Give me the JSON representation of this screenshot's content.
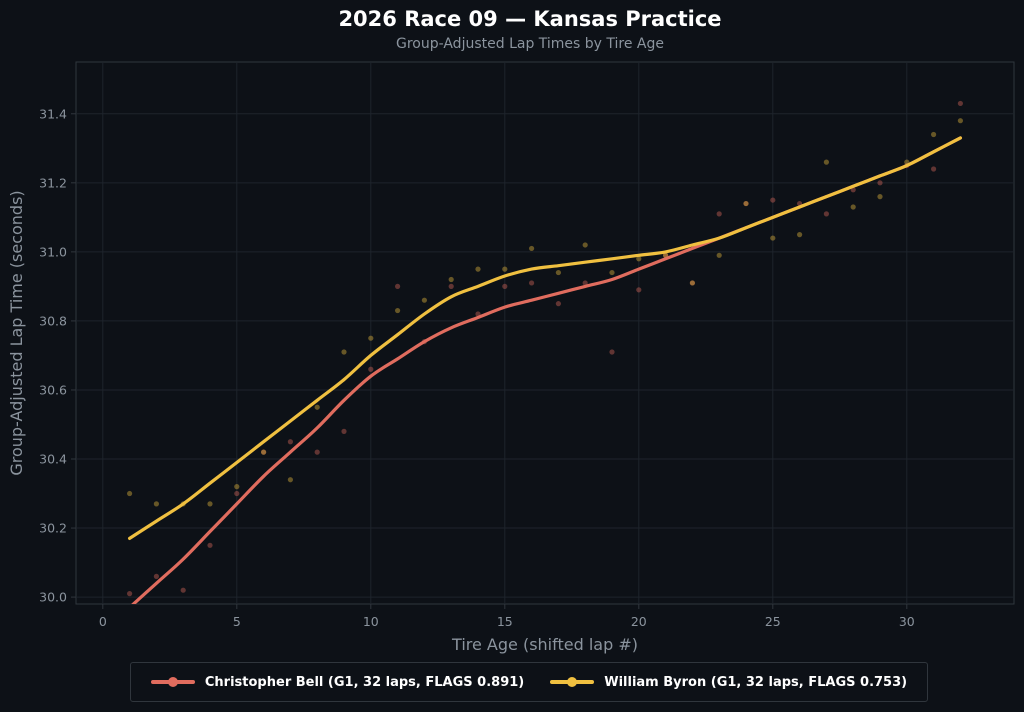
{
  "chart_data": {
    "type": "scatter",
    "title": "2026 Race 09 — Kansas Practice",
    "subtitle": "Group-Adjusted Lap Times by Tire Age",
    "xlabel": "Tire Age (shifted lap #)",
    "ylabel": "Group-Adjusted Lap Time (seconds)",
    "xlim": [
      -1,
      34
    ],
    "ylim": [
      29.98,
      31.55
    ],
    "xticks": [
      0,
      5,
      10,
      15,
      20,
      25,
      30
    ],
    "yticks": [
      30.0,
      30.2,
      30.4,
      30.6,
      30.8,
      31.0,
      31.2,
      31.4
    ],
    "grid": true,
    "legend_position": "bottom-center",
    "series": [
      {
        "name": "Christopher Bell (G1, 32 laps, FLAGS 0.891)",
        "color": "#e06c5e",
        "points": {
          "x": [
            1,
            2,
            3,
            4,
            5,
            6,
            7,
            8,
            9,
            10,
            11,
            12,
            13,
            14,
            15,
            16,
            17,
            18,
            19,
            20,
            21,
            22,
            23,
            24,
            25,
            26,
            27,
            28,
            29,
            30,
            31,
            32
          ],
          "y": [
            30.01,
            30.06,
            30.02,
            30.15,
            30.3,
            30.42,
            30.45,
            30.42,
            30.48,
            30.66,
            30.9,
            30.74,
            30.9,
            30.82,
            30.9,
            30.91,
            30.85,
            30.91,
            30.71,
            30.89,
            30.99,
            30.91,
            31.11,
            31.14,
            31.15,
            31.14,
            31.11,
            31.18,
            31.2,
            31.25,
            31.24,
            31.43
          ]
        },
        "trend": {
          "x": [
            1,
            2,
            3,
            4,
            5,
            6,
            7,
            8,
            9,
            10,
            11,
            12,
            13,
            14,
            15,
            16,
            17,
            18,
            19,
            20,
            21,
            22,
            23,
            24,
            25,
            26,
            27,
            28,
            29,
            30,
            31,
            32
          ],
          "y": [
            29.97,
            30.04,
            30.11,
            30.19,
            30.27,
            30.35,
            30.42,
            30.49,
            30.57,
            30.64,
            30.69,
            30.74,
            30.78,
            30.81,
            30.84,
            30.86,
            30.88,
            30.9,
            30.92,
            30.95,
            30.98,
            31.01,
            31.04,
            31.07,
            31.1,
            31.13,
            31.16,
            31.19,
            31.22,
            31.25,
            31.29,
            31.33
          ]
        }
      },
      {
        "name": "William Byron (G1, 32 laps, FLAGS 0.753)",
        "color": "#f0c040",
        "points": {
          "x": [
            1,
            2,
            3,
            4,
            5,
            6,
            7,
            8,
            9,
            10,
            11,
            12,
            13,
            14,
            15,
            16,
            17,
            18,
            19,
            20,
            21,
            22,
            23,
            24,
            25,
            26,
            27,
            28,
            29,
            30,
            31,
            32
          ],
          "y": [
            30.3,
            30.27,
            30.27,
            30.27,
            30.32,
            30.42,
            30.34,
            30.55,
            30.71,
            30.75,
            30.83,
            30.86,
            30.92,
            30.95,
            30.95,
            31.01,
            30.94,
            31.02,
            30.94,
            30.98,
            30.99,
            30.91,
            30.99,
            31.14,
            31.04,
            31.05,
            31.26,
            31.13,
            31.16,
            31.26,
            31.34,
            31.38
          ]
        },
        "trend": {
          "x": [
            1,
            2,
            3,
            4,
            5,
            6,
            7,
            8,
            9,
            10,
            11,
            12,
            13,
            14,
            15,
            16,
            17,
            18,
            19,
            20,
            21,
            22,
            23,
            24,
            25,
            26,
            27,
            28,
            29,
            30,
            31,
            32
          ],
          "y": [
            30.17,
            30.22,
            30.27,
            30.33,
            30.39,
            30.45,
            30.51,
            30.57,
            30.63,
            30.7,
            30.76,
            30.82,
            30.87,
            30.9,
            30.93,
            30.95,
            30.96,
            30.97,
            30.98,
            30.99,
            31.0,
            31.02,
            31.04,
            31.07,
            31.1,
            31.13,
            31.16,
            31.19,
            31.22,
            31.25,
            31.29,
            31.33
          ]
        }
      }
    ]
  }
}
